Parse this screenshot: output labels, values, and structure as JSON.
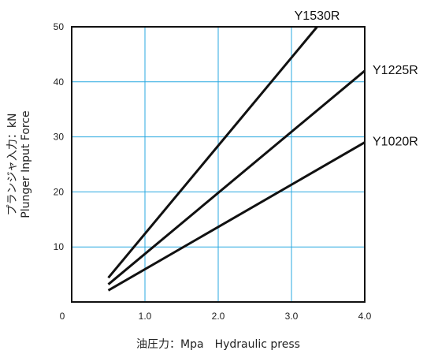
{
  "chart_data": {
    "type": "line",
    "xlabel": "油圧力：Mpa　Hydraulic press",
    "ylabel_lines": [
      "プランジャ入力：kN",
      "Plunger  Input  Force"
    ],
    "xlim": [
      0,
      4.0
    ],
    "ylim": [
      0,
      50
    ],
    "x_ticks": [
      {
        "value": 0,
        "label": "0"
      },
      {
        "value": 1,
        "label": "1.0"
      },
      {
        "value": 2,
        "label": "2.0"
      },
      {
        "value": 3,
        "label": "3.0"
      },
      {
        "value": 4,
        "label": "4.0"
      }
    ],
    "y_ticks": [
      {
        "value": 10,
        "label": "10"
      },
      {
        "value": 20,
        "label": "20"
      },
      {
        "value": 30,
        "label": "30"
      },
      {
        "value": 40,
        "label": "40"
      },
      {
        "value": 50,
        "label": "50"
      }
    ],
    "grid": true,
    "grid_color": "#29a8e0",
    "line_color": "#111111",
    "series": [
      {
        "name": "Y1530R",
        "x": [
          0.5,
          3.35
        ],
        "y": [
          4.4,
          50
        ]
      },
      {
        "name": "Y1225R",
        "x": [
          0.5,
          4.0
        ],
        "y": [
          3.2,
          42
        ]
      },
      {
        "name": "Y1020R",
        "x": [
          0.5,
          4.0
        ],
        "y": [
          2.1,
          29
        ]
      }
    ]
  }
}
